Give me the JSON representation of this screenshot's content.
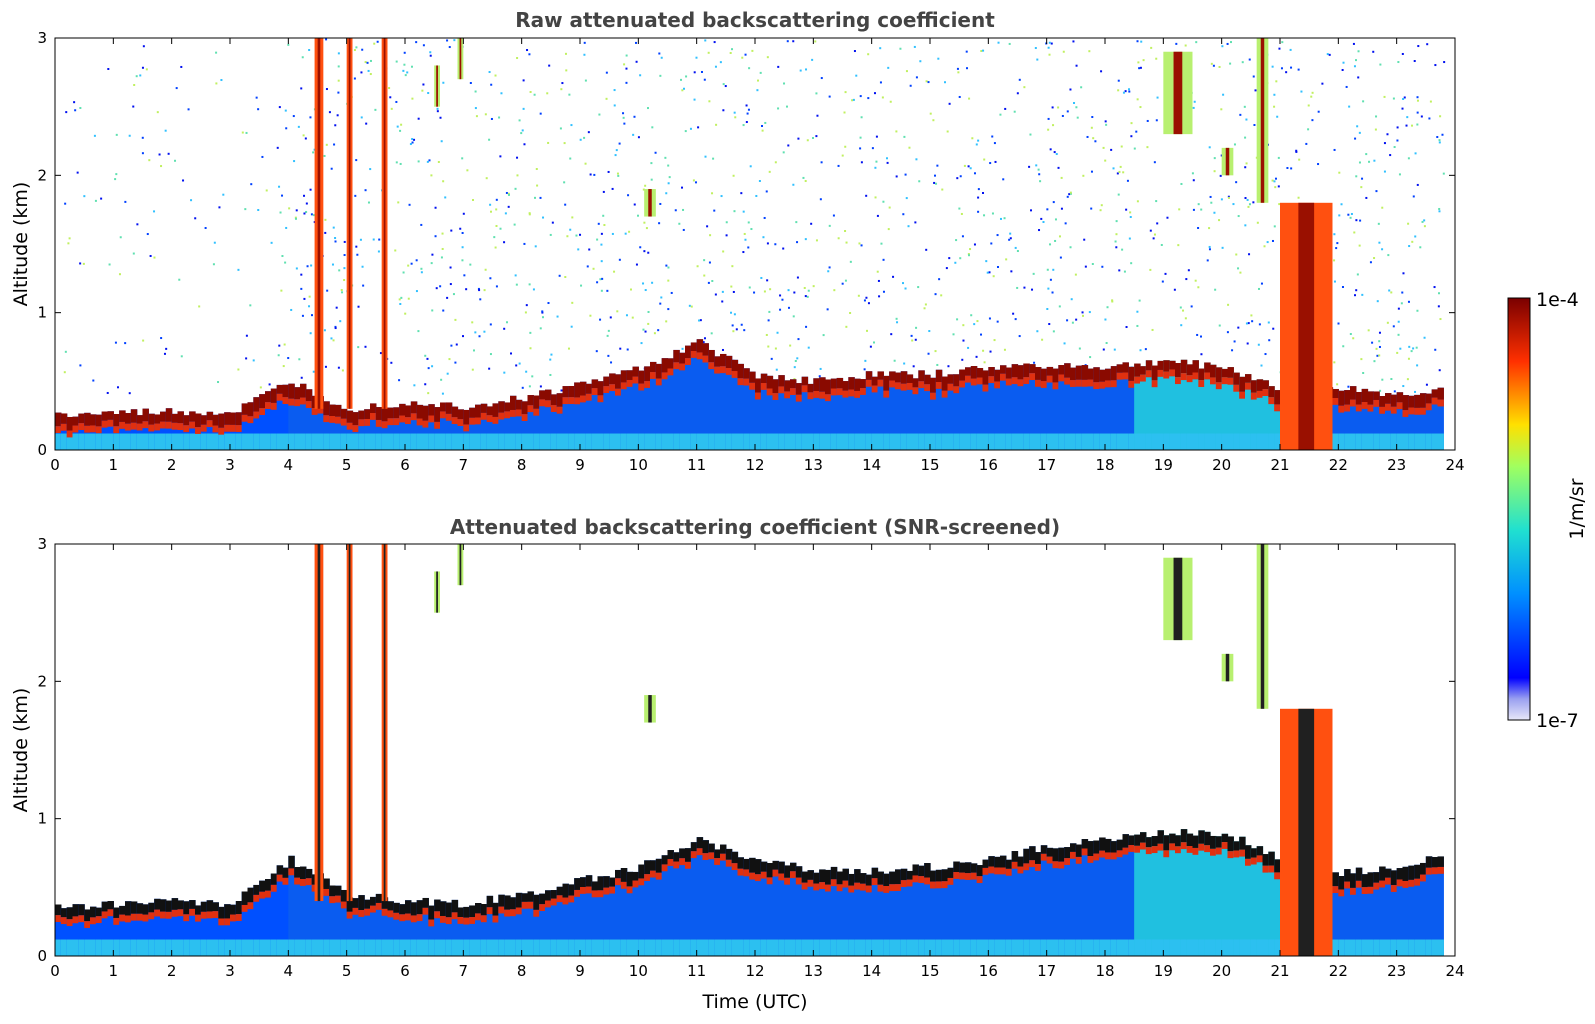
{
  "chart_data": [
    {
      "type": "heatmap",
      "title": "Raw attenuated backscattering coefficient",
      "xlabel": "",
      "ylabel": "Altitude (km)",
      "xlim": [
        0,
        24
      ],
      "ylim": [
        0,
        3
      ],
      "xticks": [
        "0",
        "1",
        "2",
        "3",
        "4",
        "5",
        "6",
        "7",
        "8",
        "9",
        "10",
        "11",
        "12",
        "13",
        "14",
        "15",
        "16",
        "17",
        "18",
        "19",
        "20",
        "21",
        "22",
        "23",
        "24"
      ],
      "yticks": [
        "0",
        "1",
        "2",
        "3"
      ],
      "noise_top_km": 3.0,
      "layer_top_km": [
        [
          0,
          0.25
        ],
        [
          1,
          0.27
        ],
        [
          2,
          0.28
        ],
        [
          3,
          0.27
        ],
        [
          4,
          0.5
        ],
        [
          5,
          0.3
        ],
        [
          6,
          0.35
        ],
        [
          7,
          0.32
        ],
        [
          8,
          0.38
        ],
        [
          9,
          0.48
        ],
        [
          10,
          0.6
        ],
        [
          11,
          0.78
        ],
        [
          12,
          0.55
        ],
        [
          13,
          0.5
        ],
        [
          14,
          0.55
        ],
        [
          15,
          0.55
        ],
        [
          16,
          0.6
        ],
        [
          17,
          0.62
        ],
        [
          18,
          0.6
        ],
        [
          19,
          0.65
        ],
        [
          20,
          0.6
        ],
        [
          21,
          0.45
        ],
        [
          22,
          0.45
        ],
        [
          23,
          0.4
        ],
        [
          23.8,
          0.45
        ]
      ],
      "clouds": [
        {
          "t0": 4.45,
          "t1": 4.6,
          "z0": 0.3,
          "z1": 3.0
        },
        {
          "t0": 5.0,
          "t1": 5.1,
          "z0": 0.3,
          "z1": 3.0
        },
        {
          "t0": 5.6,
          "t1": 5.7,
          "z0": 0.3,
          "z1": 3.0
        },
        {
          "t0": 6.5,
          "t1": 6.6,
          "z0": 2.5,
          "z1": 2.8
        },
        {
          "t0": 6.9,
          "t1": 7.0,
          "z0": 2.7,
          "z1": 3.0
        },
        {
          "t0": 10.1,
          "t1": 10.3,
          "z0": 1.7,
          "z1": 1.9
        },
        {
          "t0": 19.0,
          "t1": 19.5,
          "z0": 2.3,
          "z1": 2.9
        },
        {
          "t0": 20.0,
          "t1": 20.2,
          "z0": 2.0,
          "z1": 2.2
        },
        {
          "t0": 20.6,
          "t1": 20.8,
          "z0": 1.8,
          "z1": 3.0
        },
        {
          "t0": 21.0,
          "t1": 21.9,
          "z0": 0.0,
          "z1": 1.8
        }
      ]
    },
    {
      "type": "heatmap",
      "title": "Attenuated backscattering coefficient (SNR-screened)",
      "xlabel": "Time (UTC)",
      "ylabel": "Altitude (km)",
      "xlim": [
        0,
        24
      ],
      "ylim": [
        0,
        3
      ],
      "xticks": [
        "0",
        "1",
        "2",
        "3",
        "4",
        "5",
        "6",
        "7",
        "8",
        "9",
        "10",
        "11",
        "12",
        "13",
        "14",
        "15",
        "16",
        "17",
        "18",
        "19",
        "20",
        "21",
        "22",
        "23",
        "24"
      ],
      "yticks": [
        "0",
        "1",
        "2",
        "3"
      ],
      "noise_top_km": 0.0,
      "layer_top_km": [
        [
          0,
          0.35
        ],
        [
          1,
          0.38
        ],
        [
          2,
          0.4
        ],
        [
          3,
          0.38
        ],
        [
          4,
          0.7
        ],
        [
          5,
          0.45
        ],
        [
          6,
          0.4
        ],
        [
          7,
          0.38
        ],
        [
          8,
          0.45
        ],
        [
          9,
          0.55
        ],
        [
          10,
          0.65
        ],
        [
          11,
          0.85
        ],
        [
          12,
          0.7
        ],
        [
          13,
          0.62
        ],
        [
          14,
          0.62
        ],
        [
          15,
          0.65
        ],
        [
          16,
          0.7
        ],
        [
          17,
          0.8
        ],
        [
          18,
          0.85
        ],
        [
          19,
          0.9
        ],
        [
          20,
          0.9
        ],
        [
          21,
          0.7
        ],
        [
          22,
          0.6
        ],
        [
          23,
          0.65
        ],
        [
          23.8,
          0.75
        ]
      ],
      "clouds": [
        {
          "t0": 4.45,
          "t1": 4.6,
          "z0": 0.4,
          "z1": 3.0
        },
        {
          "t0": 5.0,
          "t1": 5.1,
          "z0": 0.4,
          "z1": 3.0
        },
        {
          "t0": 5.6,
          "t1": 5.7,
          "z0": 0.4,
          "z1": 3.0
        },
        {
          "t0": 6.5,
          "t1": 6.6,
          "z0": 2.5,
          "z1": 2.8
        },
        {
          "t0": 6.9,
          "t1": 7.0,
          "z0": 2.7,
          "z1": 3.0
        },
        {
          "t0": 10.1,
          "t1": 10.3,
          "z0": 1.7,
          "z1": 1.9
        },
        {
          "t0": 19.0,
          "t1": 19.5,
          "z0": 2.3,
          "z1": 2.9
        },
        {
          "t0": 20.0,
          "t1": 20.2,
          "z0": 2.0,
          "z1": 2.2
        },
        {
          "t0": 20.6,
          "t1": 20.8,
          "z0": 1.8,
          "z1": 3.0
        },
        {
          "t0": 21.0,
          "t1": 21.9,
          "z0": 0.0,
          "z1": 1.8
        }
      ]
    }
  ],
  "colorbar": {
    "label": "1/m/sr",
    "max_label": "1e-4",
    "min_label": "1e-7",
    "colormap": "jet",
    "colors": [
      "#e8e8f8",
      "#0000ff",
      "#00aaff",
      "#40e0c0",
      "#c0ff40",
      "#ffd000",
      "#ff3000",
      "#800000"
    ]
  }
}
